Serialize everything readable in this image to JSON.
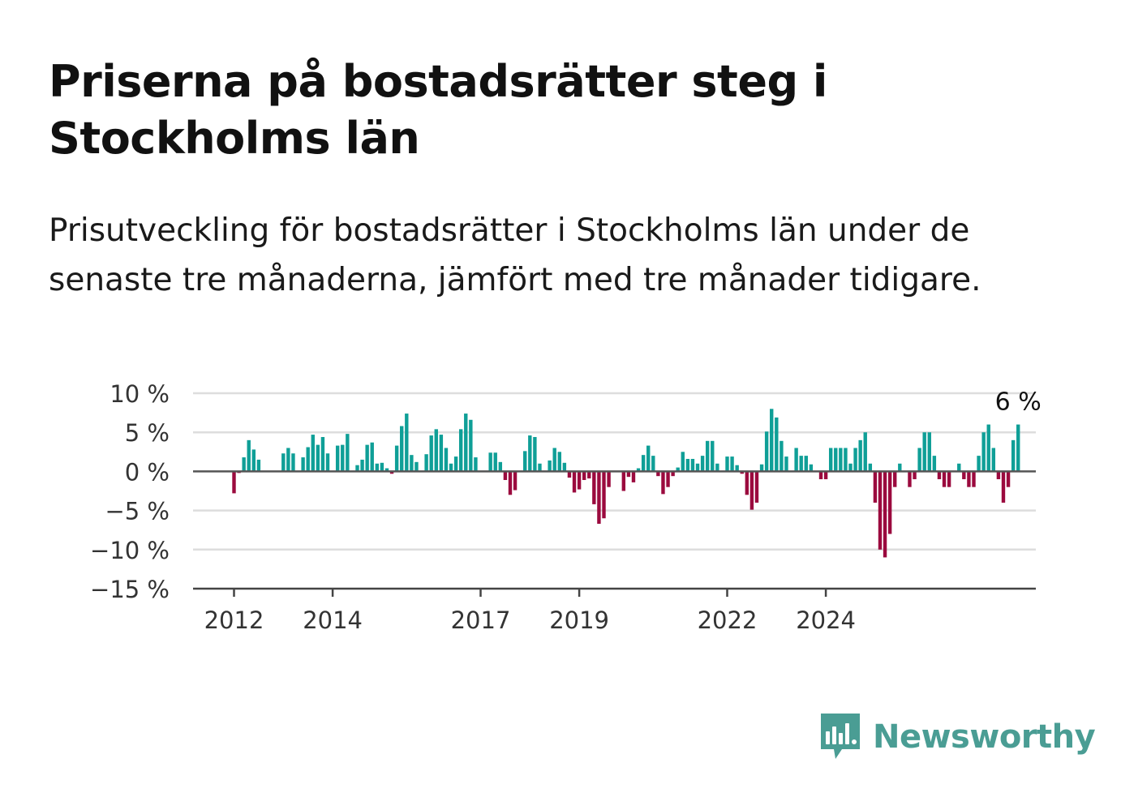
{
  "header": {
    "title": "Priserna på bostadsrätter steg i Stockholms län",
    "subtitle": "Prisutveckling för bostadsrätter i Stockholms län under de senaste tre månaderna, jämfört med tre månader tidigare."
  },
  "brand": {
    "name": "Newsworthy",
    "color": "#4a9d94"
  },
  "colors": {
    "positive": "#0f9f97",
    "negative": "#9b0a3e",
    "grid": "#dddddd",
    "zero_line": "#555555"
  },
  "chart_data": {
    "type": "bar",
    "title": "",
    "xlabel": "",
    "ylabel": "",
    "ylim": [
      -15,
      10
    ],
    "y_ticks": [
      {
        "value": 10,
        "label": "10 %"
      },
      {
        "value": 5,
        "label": "5 %"
      },
      {
        "value": 0,
        "label": "0 %"
      },
      {
        "value": -5,
        "label": "−5 %"
      },
      {
        "value": -10,
        "label": "−10 %"
      },
      {
        "value": -15,
        "label": "−15 %"
      }
    ],
    "x_ticks": [
      {
        "index": 0,
        "label": "2012"
      },
      {
        "index": 20,
        "label": "2014"
      },
      {
        "index": 50,
        "label": "2017"
      },
      {
        "index": 70,
        "label": "2019"
      },
      {
        "index": 100,
        "label": "2022"
      },
      {
        "index": 120,
        "label": "2024"
      }
    ],
    "last_value_label": "6 %",
    "grid": true,
    "values": [
      -2.8,
      -0.2,
      1.8,
      4.0,
      2.8,
      1.5,
      0,
      0,
      0,
      0,
      2.3,
      3.0,
      2.3,
      0,
      1.8,
      3.1,
      4.7,
      3.4,
      4.4,
      2.3,
      0,
      3.3,
      3.4,
      4.8,
      0,
      0.8,
      1.5,
      3.4,
      3.7,
      1.0,
      1.1,
      0.4,
      -0.3,
      3.3,
      5.8,
      7.4,
      2.1,
      1.2,
      0,
      2.2,
      4.6,
      5.4,
      4.7,
      3.0,
      1.0,
      1.9,
      5.4,
      7.4,
      6.6,
      1.8,
      0,
      0,
      2.4,
      2.4,
      1.2,
      -1.1,
      -3.0,
      -2.4,
      0,
      2.6,
      4.6,
      4.4,
      1.0,
      0,
      1.4,
      3.0,
      2.5,
      1.1,
      -0.8,
      -2.7,
      -2.3,
      -1.1,
      -0.9,
      -4.2,
      -6.7,
      -6.0,
      -2.0,
      0,
      0,
      -2.5,
      -0.7,
      -1.4,
      0.4,
      2.1,
      3.3,
      2.0,
      -0.6,
      -2.9,
      -2.0,
      -0.6,
      0.5,
      2.5,
      1.6,
      1.6,
      1.0,
      2.0,
      3.9,
      3.9,
      1.0,
      0,
      1.9,
      1.9,
      0.8,
      -0.3,
      -3.0,
      -4.9,
      -4.0,
      0.9,
      5.1,
      8.0,
      6.9,
      3.9,
      1.9,
      0,
      3.0,
      2.0,
      2.0,
      0.9,
      0,
      -1.0,
      -1.0,
      3.0,
      3.0,
      3.0,
      3.0,
      1.0,
      3.0,
      4.0,
      5.0,
      1.0,
      -4.0,
      -10.0,
      -11.0,
      -8.0,
      -2.0,
      1.0,
      0,
      -2.0,
      -1.0,
      3.0,
      5.0,
      5.0,
      2.0,
      -1.0,
      -2.0,
      -2.0,
      0,
      1.0,
      -1.0,
      -2.0,
      -2.0,
      2.0,
      5.0,
      6.0,
      3.0,
      -1.0,
      -4.0,
      -2.0,
      4.0,
      6.0
    ]
  }
}
